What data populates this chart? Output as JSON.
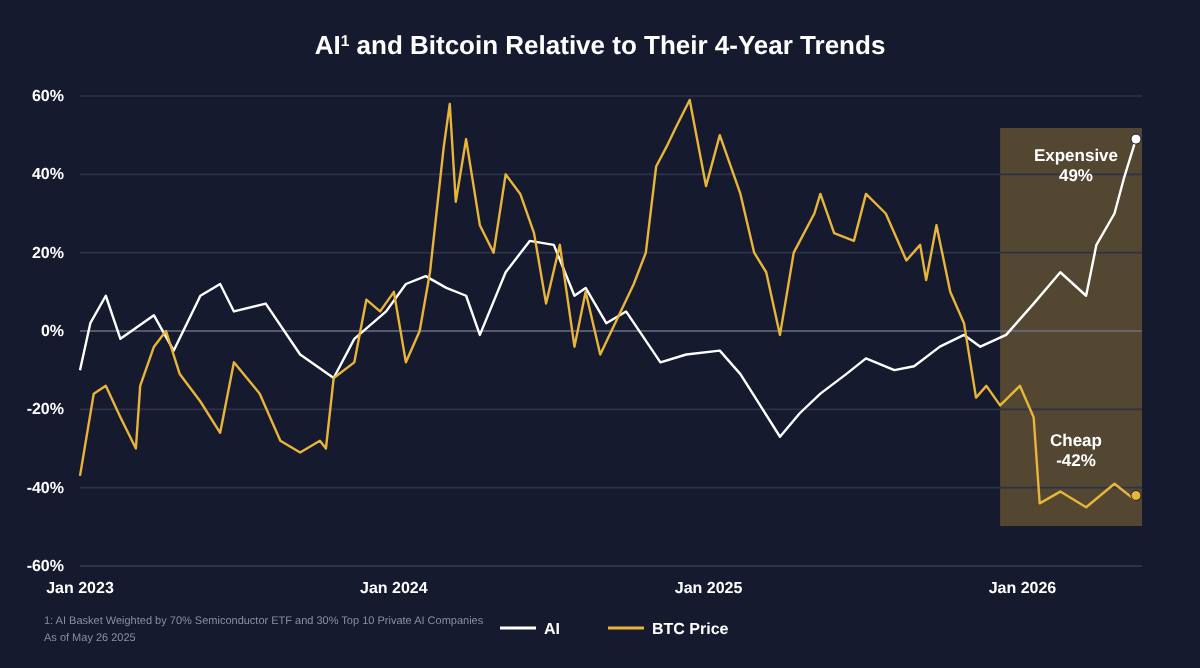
{
  "chart_data": {
    "type": "line",
    "title": "AI$^{1}$ and Bitcoin Relative to Their 4-Year Trends",
    "xlim": [
      "2023-01-01",
      "2026-05-20"
    ],
    "xticks": [
      {
        "value": "2023-01-01",
        "label": "Jan 2023"
      },
      {
        "value": "2024-01-01",
        "label": "Jan 2024"
      },
      {
        "value": "2025-01-01",
        "label": "Jan 2025"
      },
      {
        "value": "2026-01-01",
        "label": "Jan 2026"
      }
    ],
    "ylim": [
      -60,
      60
    ],
    "yticks": [
      {
        "value": -60,
        "label": "-60%"
      },
      {
        "value": -40,
        "label": "-40%"
      },
      {
        "value": -20,
        "label": "-20%"
      },
      {
        "value": 0,
        "label": "0%"
      },
      {
        "value": 20,
        "label": "20%"
      },
      {
        "value": 40,
        "label": "40%"
      },
      {
        "value": 60,
        "label": "60%"
      }
    ],
    "grid": "y",
    "legend": "bottom",
    "line_style": "solid",
    "marker": "none",
    "series": [
      {
        "name": "AI",
        "color": "#ffffff",
        "x": [
          "2023-01-01",
          "2023-01-13",
          "2023-01-31",
          "2023-02-17",
          "2023-03-28",
          "2023-04-20",
          "2023-05-21",
          "2023-06-13",
          "2023-06-29",
          "2023-08-05",
          "2023-09-14",
          "2023-10-23",
          "2023-11-16",
          "2023-12-23",
          "2024-01-15",
          "2024-02-07",
          "2024-03-02",
          "2024-03-25",
          "2024-04-10",
          "2024-05-10",
          "2024-06-07",
          "2024-07-05",
          "2024-07-29",
          "2024-08-11",
          "2024-09-04",
          "2024-09-27",
          "2024-11-06",
          "2024-12-06",
          "2025-01-14",
          "2025-02-07",
          "2025-03-02",
          "2025-03-25",
          "2025-04-17",
          "2025-05-11",
          "2025-06-10",
          "2025-07-03",
          "2025-08-05",
          "2025-08-28",
          "2025-09-27",
          "2025-10-25",
          "2025-11-13",
          "2025-12-13",
          "2026-01-14",
          "2026-02-14",
          "2026-03-16",
          "2026-03-28",
          "2026-04-18",
          "2026-04-29",
          "2026-05-13"
        ],
        "values": [
          -10,
          2,
          9,
          -2,
          4,
          -5,
          9,
          12,
          5,
          7,
          -6,
          -12,
          -2,
          5,
          12,
          14,
          11,
          9,
          -1,
          15,
          23,
          22,
          9,
          11,
          2,
          5,
          -8,
          -6,
          -5,
          -11,
          -19,
          -27,
          -21,
          -16,
          -11,
          -7,
          -10,
          -9,
          -4,
          -1,
          -4,
          -1,
          7,
          15,
          9,
          22,
          30,
          39,
          49
        ]
      },
      {
        "name": "BTC Price",
        "color": "#e8b53a",
        "x": [
          "2023-01-01",
          "2023-01-17",
          "2023-01-31",
          "2023-02-17",
          "2023-03-07",
          "2023-03-12",
          "2023-03-28",
          "2023-04-11",
          "2023-04-27",
          "2023-05-21",
          "2023-06-13",
          "2023-06-29",
          "2023-07-29",
          "2023-08-22",
          "2023-09-14",
          "2023-10-07",
          "2023-10-14",
          "2023-10-23",
          "2023-11-16",
          "2023-11-30",
          "2023-12-16",
          "2024-01-01",
          "2024-01-15",
          "2024-01-31",
          "2024-02-12",
          "2024-02-28",
          "2024-03-06",
          "2024-03-13",
          "2024-03-25",
          "2024-04-10",
          "2024-04-26",
          "2024-05-10",
          "2024-05-27",
          "2024-06-12",
          "2024-06-26",
          "2024-07-12",
          "2024-07-29",
          "2024-08-11",
          "2024-08-28",
          "2024-10-06",
          "2024-10-20",
          "2024-11-01",
          "2024-11-13",
          "2024-11-24",
          "2024-12-10",
          "2024-12-29",
          "2025-01-14",
          "2025-02-07",
          "2025-02-23",
          "2025-03-09",
          "2025-03-25",
          "2025-04-10",
          "2025-05-04",
          "2025-05-11",
          "2025-05-27",
          "2025-06-19",
          "2025-07-03",
          "2025-07-26",
          "2025-08-19",
          "2025-09-04",
          "2025-09-11",
          "2025-09-23",
          "2025-10-09",
          "2025-10-25",
          "2025-11-08",
          "2025-11-20",
          "2025-12-06",
          "2025-12-29",
          "2026-01-14",
          "2026-01-21",
          "2026-02-14",
          "2026-03-16",
          "2026-04-18",
          "2026-05-11",
          "2026-05-13"
        ],
        "values": [
          -37,
          -16,
          -14,
          -22,
          -30,
          -14,
          -4,
          0,
          -11,
          -18,
          -26,
          -8,
          -16,
          -28,
          -31,
          -28,
          -30,
          -12,
          -8,
          8,
          5,
          10,
          -8,
          0,
          15,
          47,
          58,
          33,
          49,
          27,
          20,
          40,
          35,
          25,
          7,
          22,
          -4,
          10,
          -6,
          12,
          20,
          42,
          47,
          52,
          59,
          37,
          50,
          35,
          20,
          15,
          -1,
          20,
          30,
          35,
          25,
          23,
          35,
          30,
          18,
          22,
          13,
          27,
          10,
          2,
          -17,
          -14,
          -19,
          -14,
          -22,
          -44,
          -41,
          -45,
          -39,
          -43,
          -42
        ]
      }
    ],
    "bands": [
      {
        "axis": "x",
        "from": "2025-12-06",
        "to": "2026-05-20",
        "color": "#5a4d33"
      }
    ],
    "annotations": [
      {
        "text": "Expensive\n49%",
        "x": "2026-05-13",
        "y": 49
      },
      {
        "text": "Cheap\n-42%",
        "x": "2026-05-13",
        "y": -42
      },
      "1: AI Basket Weighted by 70% Semiconductor ETF and 30% Top 10 Private AI Companies",
      "As of May 26 2025"
    ]
  }
}
